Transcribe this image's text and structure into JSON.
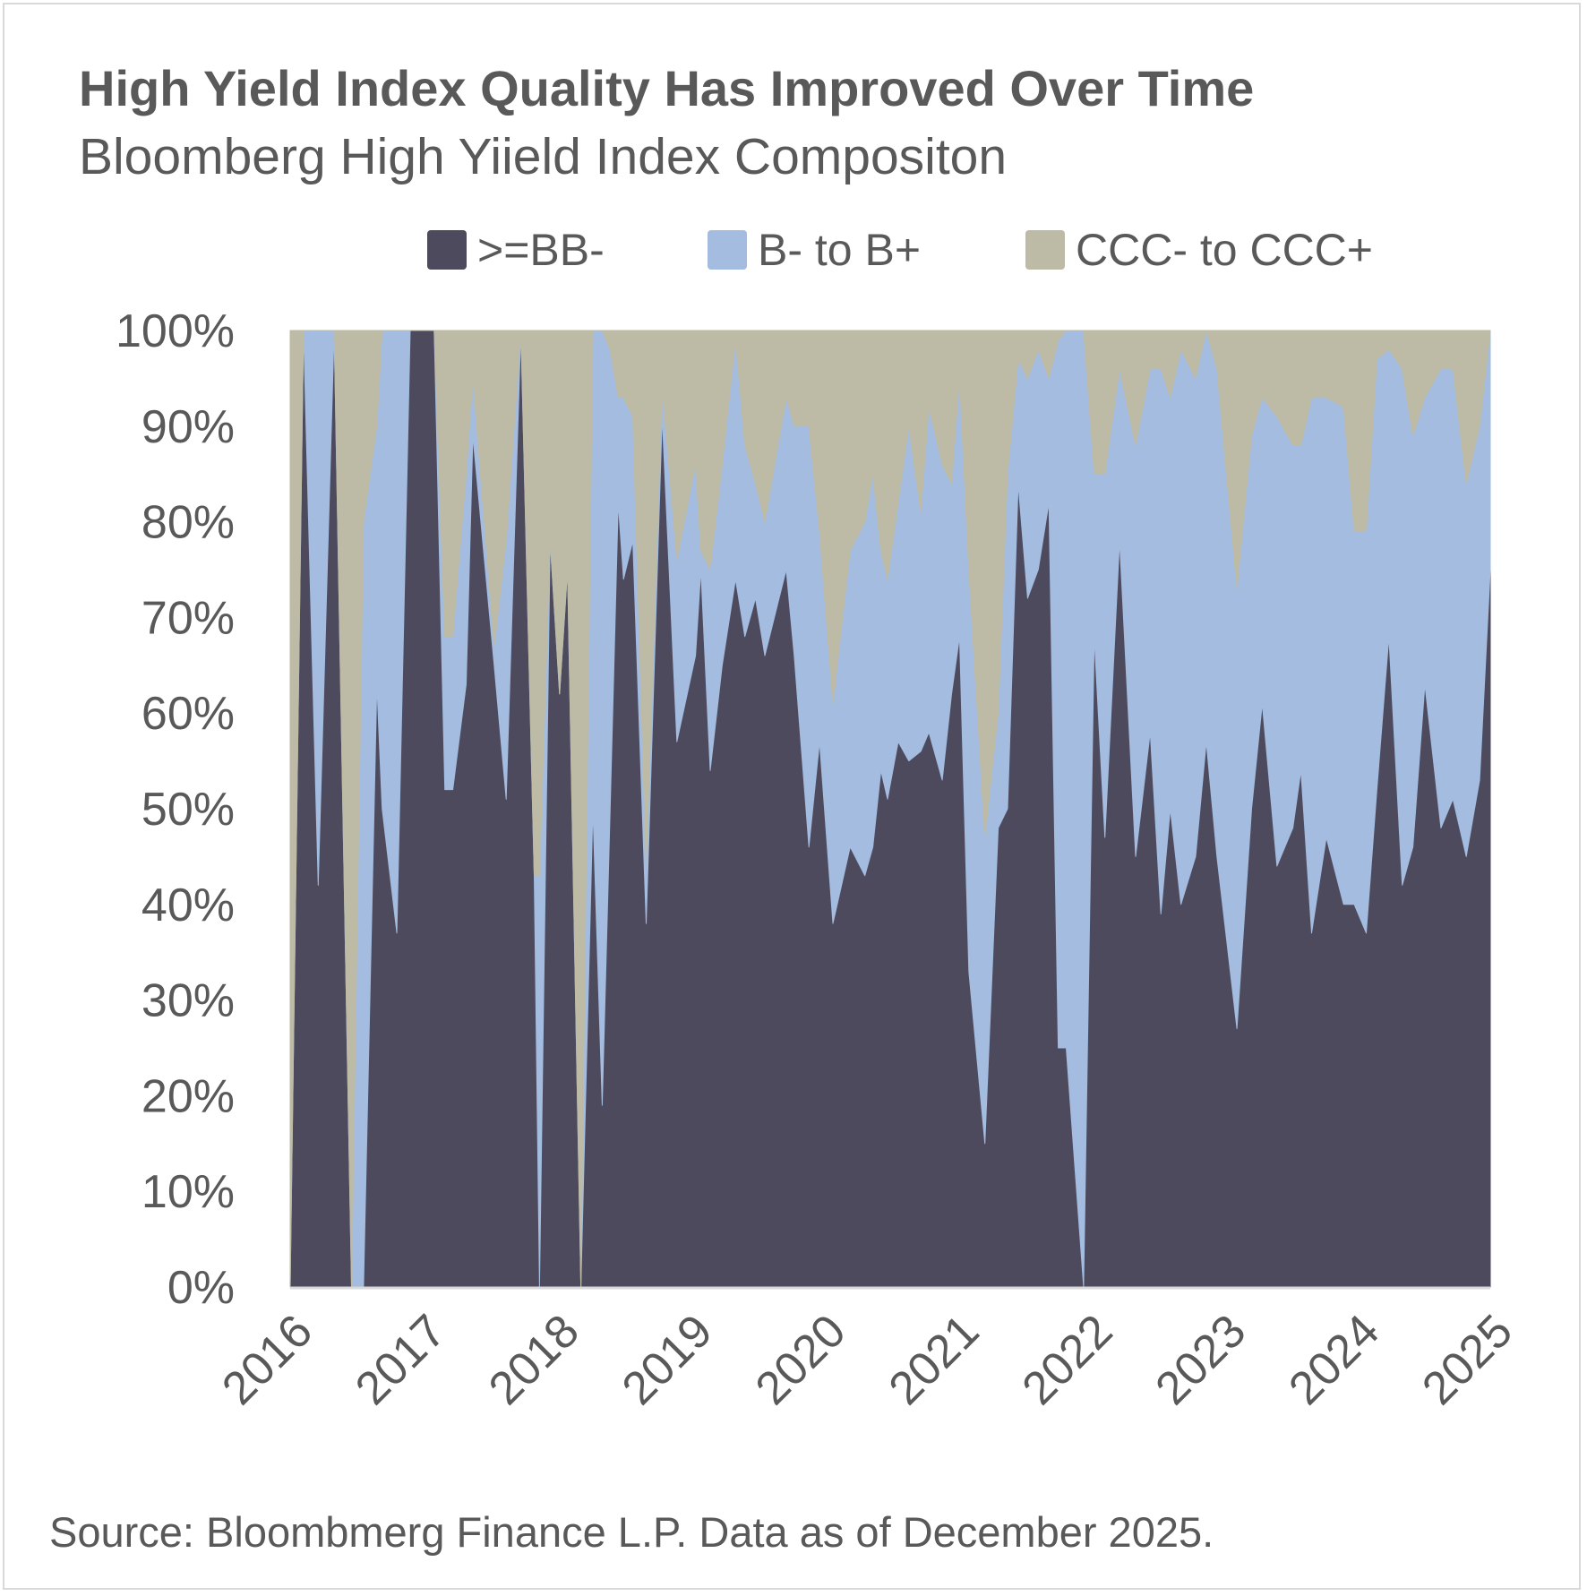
{
  "chart_data": {
    "type": "area",
    "stacked": true,
    "title": "High Yield Index Quality Has Improved Over Time",
    "subtitle": "Bloomberg High Yiield Index Compositon",
    "source": "Source: Bloombmerg Finance L.P. Data as of December 2025.",
    "xlabel": "",
    "ylabel": "",
    "ylim": [
      0,
      100
    ],
    "xlim": [
      2016,
      2025
    ],
    "yticks": [
      "0%",
      "10%",
      "20%",
      "30%",
      "40%",
      "50%",
      "60%",
      "70%",
      "80%",
      "90%",
      "100%"
    ],
    "xticks": [
      "2016",
      "2017",
      "2018",
      "2019",
      "2020",
      "2021",
      "2022",
      "2023",
      "2024",
      "2025"
    ],
    "grid": false,
    "legend_position": "top",
    "x": [
      2016.0,
      2016.1,
      2016.21,
      2016.33,
      2016.46,
      2016.55,
      2016.65,
      2016.69,
      2016.8,
      2016.9,
      2017.08,
      2017.16,
      2017.22,
      2017.32,
      2017.37,
      2017.53,
      2017.62,
      2017.73,
      2017.83,
      2017.87,
      2017.95,
      2018.02,
      2018.08,
      2018.18,
      2018.27,
      2018.34,
      2018.4,
      2018.46,
      2018.5,
      2018.57,
      2018.67,
      2018.79,
      2018.9,
      2019.04,
      2019.08,
      2019.15,
      2019.24,
      2019.34,
      2019.41,
      2019.49,
      2019.56,
      2019.72,
      2019.78,
      2019.89,
      2019.97,
      2020.07,
      2020.2,
      2020.31,
      2020.37,
      2020.43,
      2020.48,
      2020.56,
      2020.64,
      2020.73,
      2020.79,
      2020.89,
      2020.96,
      2021.02,
      2021.09,
      2021.21,
      2021.31,
      2021.38,
      2021.46,
      2021.53,
      2021.61,
      2021.69,
      2021.76,
      2021.82,
      2021.95,
      2022.03,
      2022.11,
      2022.22,
      2022.34,
      2022.45,
      2022.53,
      2022.6,
      2022.68,
      2022.79,
      2022.87,
      2022.95,
      2023.1,
      2023.21,
      2023.29,
      2023.4,
      2023.52,
      2023.58,
      2023.66,
      2023.77,
      2023.9,
      2023.98,
      2024.07,
      2024.15,
      2024.24,
      2024.34,
      2024.42,
      2024.51,
      2024.63,
      2024.72,
      2024.82,
      2024.92,
      2025.01
    ],
    "series": [
      {
        "name": ">=BB-",
        "color": "#4d4a5e",
        "values": [
          0,
          100,
          42,
          100,
          0,
          0,
          63,
          50,
          37,
          100,
          100,
          52,
          52,
          63,
          89,
          65,
          51,
          100,
          43,
          0,
          78,
          62,
          75,
          0,
          50,
          19,
          50,
          82,
          74,
          78,
          38,
          91,
          57,
          66,
          75,
          54,
          65,
          74,
          68,
          72,
          66,
          75,
          66,
          46,
          57,
          38,
          46,
          43,
          46,
          54,
          51,
          57,
          55,
          56,
          58,
          53,
          62,
          68,
          33,
          15,
          48,
          50,
          84,
          72,
          75,
          82,
          25,
          25,
          0,
          68,
          47,
          78,
          45,
          58,
          39,
          50,
          40,
          45,
          57,
          45,
          27,
          50,
          61,
          44,
          48,
          54,
          37,
          47,
          40,
          40,
          37,
          52,
          68,
          42,
          46,
          63,
          48,
          51,
          45,
          53,
          75
        ]
      },
      {
        "name": "B- to B+",
        "color": "#a3bce0",
        "values": [
          0,
          0,
          58,
          0,
          0,
          80,
          27,
          50,
          63,
          0,
          0,
          16,
          16,
          22,
          6,
          2,
          27,
          0,
          0,
          43,
          0,
          0,
          0,
          0,
          50,
          81,
          48,
          11,
          19,
          13,
          6,
          3,
          19,
          20,
          2,
          21,
          21,
          25,
          20,
          12,
          14,
          18,
          24,
          44,
          22,
          23,
          31,
          37,
          39,
          23,
          23,
          25,
          35,
          25,
          34,
          33,
          22,
          27,
          42,
          32,
          12,
          35,
          13,
          23,
          23,
          13,
          74,
          75,
          100,
          17,
          38,
          18,
          43,
          38,
          57,
          43,
          58,
          50,
          43,
          51,
          46,
          39,
          32,
          47,
          40,
          34,
          56,
          46,
          52,
          39,
          42,
          45,
          30,
          54,
          43,
          30,
          48,
          45,
          39,
          37,
          25
        ]
      },
      {
        "name": "CCC- to CCC+",
        "color": "#bdbba6",
        "values": [
          100,
          0,
          0,
          0,
          100,
          20,
          10,
          0,
          0,
          0,
          0,
          32,
          32,
          15,
          5,
          33,
          22,
          0,
          57,
          57,
          22,
          38,
          25,
          100,
          0,
          0,
          2,
          7,
          7,
          9,
          56,
          6,
          24,
          14,
          23,
          25,
          14,
          1,
          12,
          16,
          20,
          7,
          10,
          10,
          21,
          39,
          23,
          20,
          15,
          23,
          26,
          18,
          10,
          19,
          8,
          14,
          16,
          5,
          25,
          53,
          40,
          15,
          3,
          5,
          2,
          5,
          1,
          0,
          0,
          15,
          15,
          4,
          12,
          4,
          4,
          7,
          2,
          5,
          0,
          4,
          27,
          11,
          7,
          9,
          12,
          12,
          7,
          7,
          8,
          21,
          21,
          3,
          2,
          4,
          11,
          7,
          4,
          4,
          16,
          10,
          0
        ]
      }
    ]
  }
}
